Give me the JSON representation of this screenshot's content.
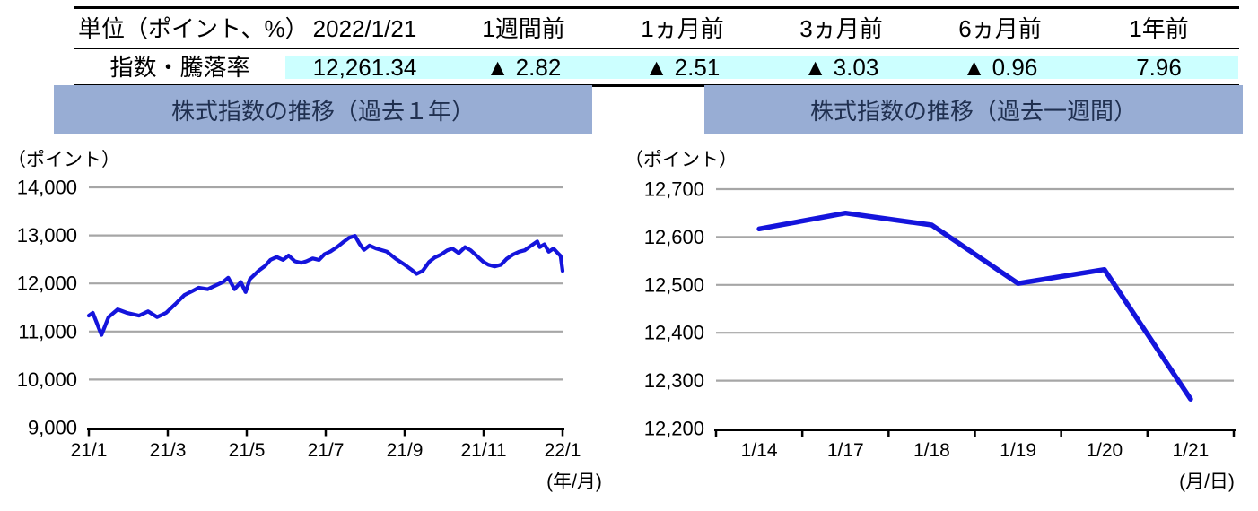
{
  "colors": {
    "line": "#1414DC",
    "grid": "#A6A6A6",
    "axis": "#000000",
    "banner_bg": "#98ADD4",
    "banner_text": "#203050",
    "highlight_bg": "#CCFFFF",
    "text": "#000000"
  },
  "table": {
    "header": [
      "単位（ポイント、%）",
      "2022/1/21",
      "1週間前",
      "1ヵ月前",
      "3ヵ月前",
      "6ヵ月前",
      "1年前"
    ],
    "row": {
      "label": "指数・騰落率",
      "values": [
        "12,261.34",
        "▲ 2.82",
        "▲ 2.51",
        "▲ 3.03",
        "▲ 0.96",
        "7.96"
      ]
    }
  },
  "panels": {
    "left": {
      "title": "株式指数の推移（過去１年）"
    },
    "right": {
      "title": "株式指数の推移（過去一週間）"
    }
  },
  "chart_data": [
    {
      "type": "line",
      "title": "株式指数の推移（過去１年）",
      "unit_label": "（ポイント）",
      "axis_note": "(年/月)",
      "xlim": [
        1,
        13
      ],
      "ylim": [
        9000,
        14000
      ],
      "x_ticks": [
        1,
        3,
        5,
        7,
        9,
        11,
        13
      ],
      "x_tick_labels": [
        "21/1",
        "21/3",
        "21/5",
        "21/7",
        "21/9",
        "21/11",
        "22/1"
      ],
      "y_ticks": [
        9000,
        10000,
        11000,
        12000,
        13000,
        14000
      ],
      "y_tick_labels": [
        "9,000",
        "10,000",
        "11,000",
        "12,000",
        "13,000",
        "14,000"
      ],
      "grid": true,
      "legend": "none",
      "series": [
        {
          "name": "指数",
          "x": [
            1.0,
            1.1,
            1.32,
            1.5,
            1.73,
            1.96,
            2.27,
            2.5,
            2.73,
            2.96,
            3.19,
            3.42,
            3.64,
            3.78,
            4.01,
            4.24,
            4.4,
            4.53,
            4.69,
            4.85,
            4.97,
            5.08,
            5.31,
            5.47,
            5.6,
            5.76,
            5.92,
            6.06,
            6.22,
            6.38,
            6.51,
            6.67,
            6.83,
            6.97,
            7.13,
            7.29,
            7.43,
            7.59,
            7.74,
            7.86,
            7.97,
            8.11,
            8.27,
            8.55,
            8.78,
            9.0,
            9.16,
            9.3,
            9.46,
            9.62,
            9.76,
            9.92,
            10.08,
            10.21,
            10.37,
            10.53,
            10.67,
            10.83,
            10.99,
            11.12,
            11.28,
            11.44,
            11.58,
            11.74,
            11.9,
            12.04,
            12.2,
            12.36,
            12.42,
            12.54,
            12.65,
            12.77,
            12.88,
            12.95,
            13.0
          ],
          "y": [
            11330,
            11390,
            10930,
            11300,
            11460,
            11390,
            11330,
            11420,
            11300,
            11390,
            11570,
            11760,
            11850,
            11910,
            11880,
            11970,
            12030,
            12120,
            11880,
            12030,
            11820,
            12090,
            12270,
            12370,
            12490,
            12550,
            12490,
            12580,
            12460,
            12430,
            12460,
            12520,
            12490,
            12610,
            12670,
            12760,
            12850,
            12950,
            12990,
            12820,
            12700,
            12790,
            12730,
            12660,
            12510,
            12390,
            12295,
            12200,
            12265,
            12450,
            12540,
            12600,
            12690,
            12725,
            12630,
            12755,
            12690,
            12570,
            12450,
            12390,
            12355,
            12390,
            12510,
            12600,
            12660,
            12690,
            12785,
            12875,
            12755,
            12815,
            12660,
            12725,
            12630,
            12570,
            12261
          ]
        }
      ]
    },
    {
      "type": "line",
      "title": "株式指数の推移（過去一週間）",
      "unit_label": "（ポイント）",
      "axis_note": "(月/日)",
      "categories": [
        "1/14",
        "1/17",
        "1/18",
        "1/19",
        "1/20",
        "1/21"
      ],
      "values": [
        12617,
        12650,
        12625,
        12503,
        12532,
        12261.34
      ],
      "ylim": [
        12200,
        12700
      ],
      "y_ticks": [
        12200,
        12300,
        12400,
        12500,
        12600,
        12700
      ],
      "y_tick_labels": [
        "12,200",
        "12,300",
        "12,400",
        "12,500",
        "12,600",
        "12,700"
      ],
      "grid": true,
      "legend": "none"
    }
  ]
}
